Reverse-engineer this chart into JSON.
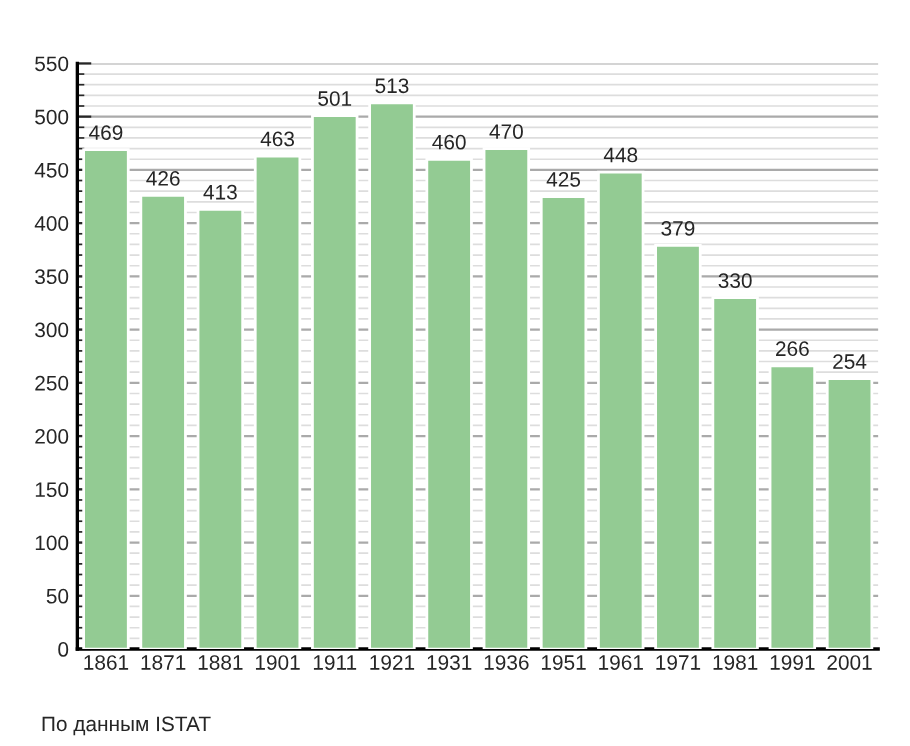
{
  "chart_data": {
    "type": "bar",
    "categories": [
      "1861",
      "1871",
      "1881",
      "1901",
      "1911",
      "1921",
      "1931",
      "1936",
      "1951",
      "1961",
      "1971",
      "1981",
      "1991",
      "2001"
    ],
    "values": [
      469,
      426,
      413,
      463,
      501,
      513,
      460,
      470,
      425,
      448,
      379,
      330,
      266,
      254
    ],
    "color": "#93cb93",
    "ylim": [
      0,
      550
    ],
    "yticks": [
      0,
      50,
      100,
      150,
      200,
      250,
      300,
      350,
      400,
      450,
      500,
      550
    ],
    "grid": "y",
    "data_labels": true,
    "annotations": [
      "По данным ISTAT"
    ]
  }
}
